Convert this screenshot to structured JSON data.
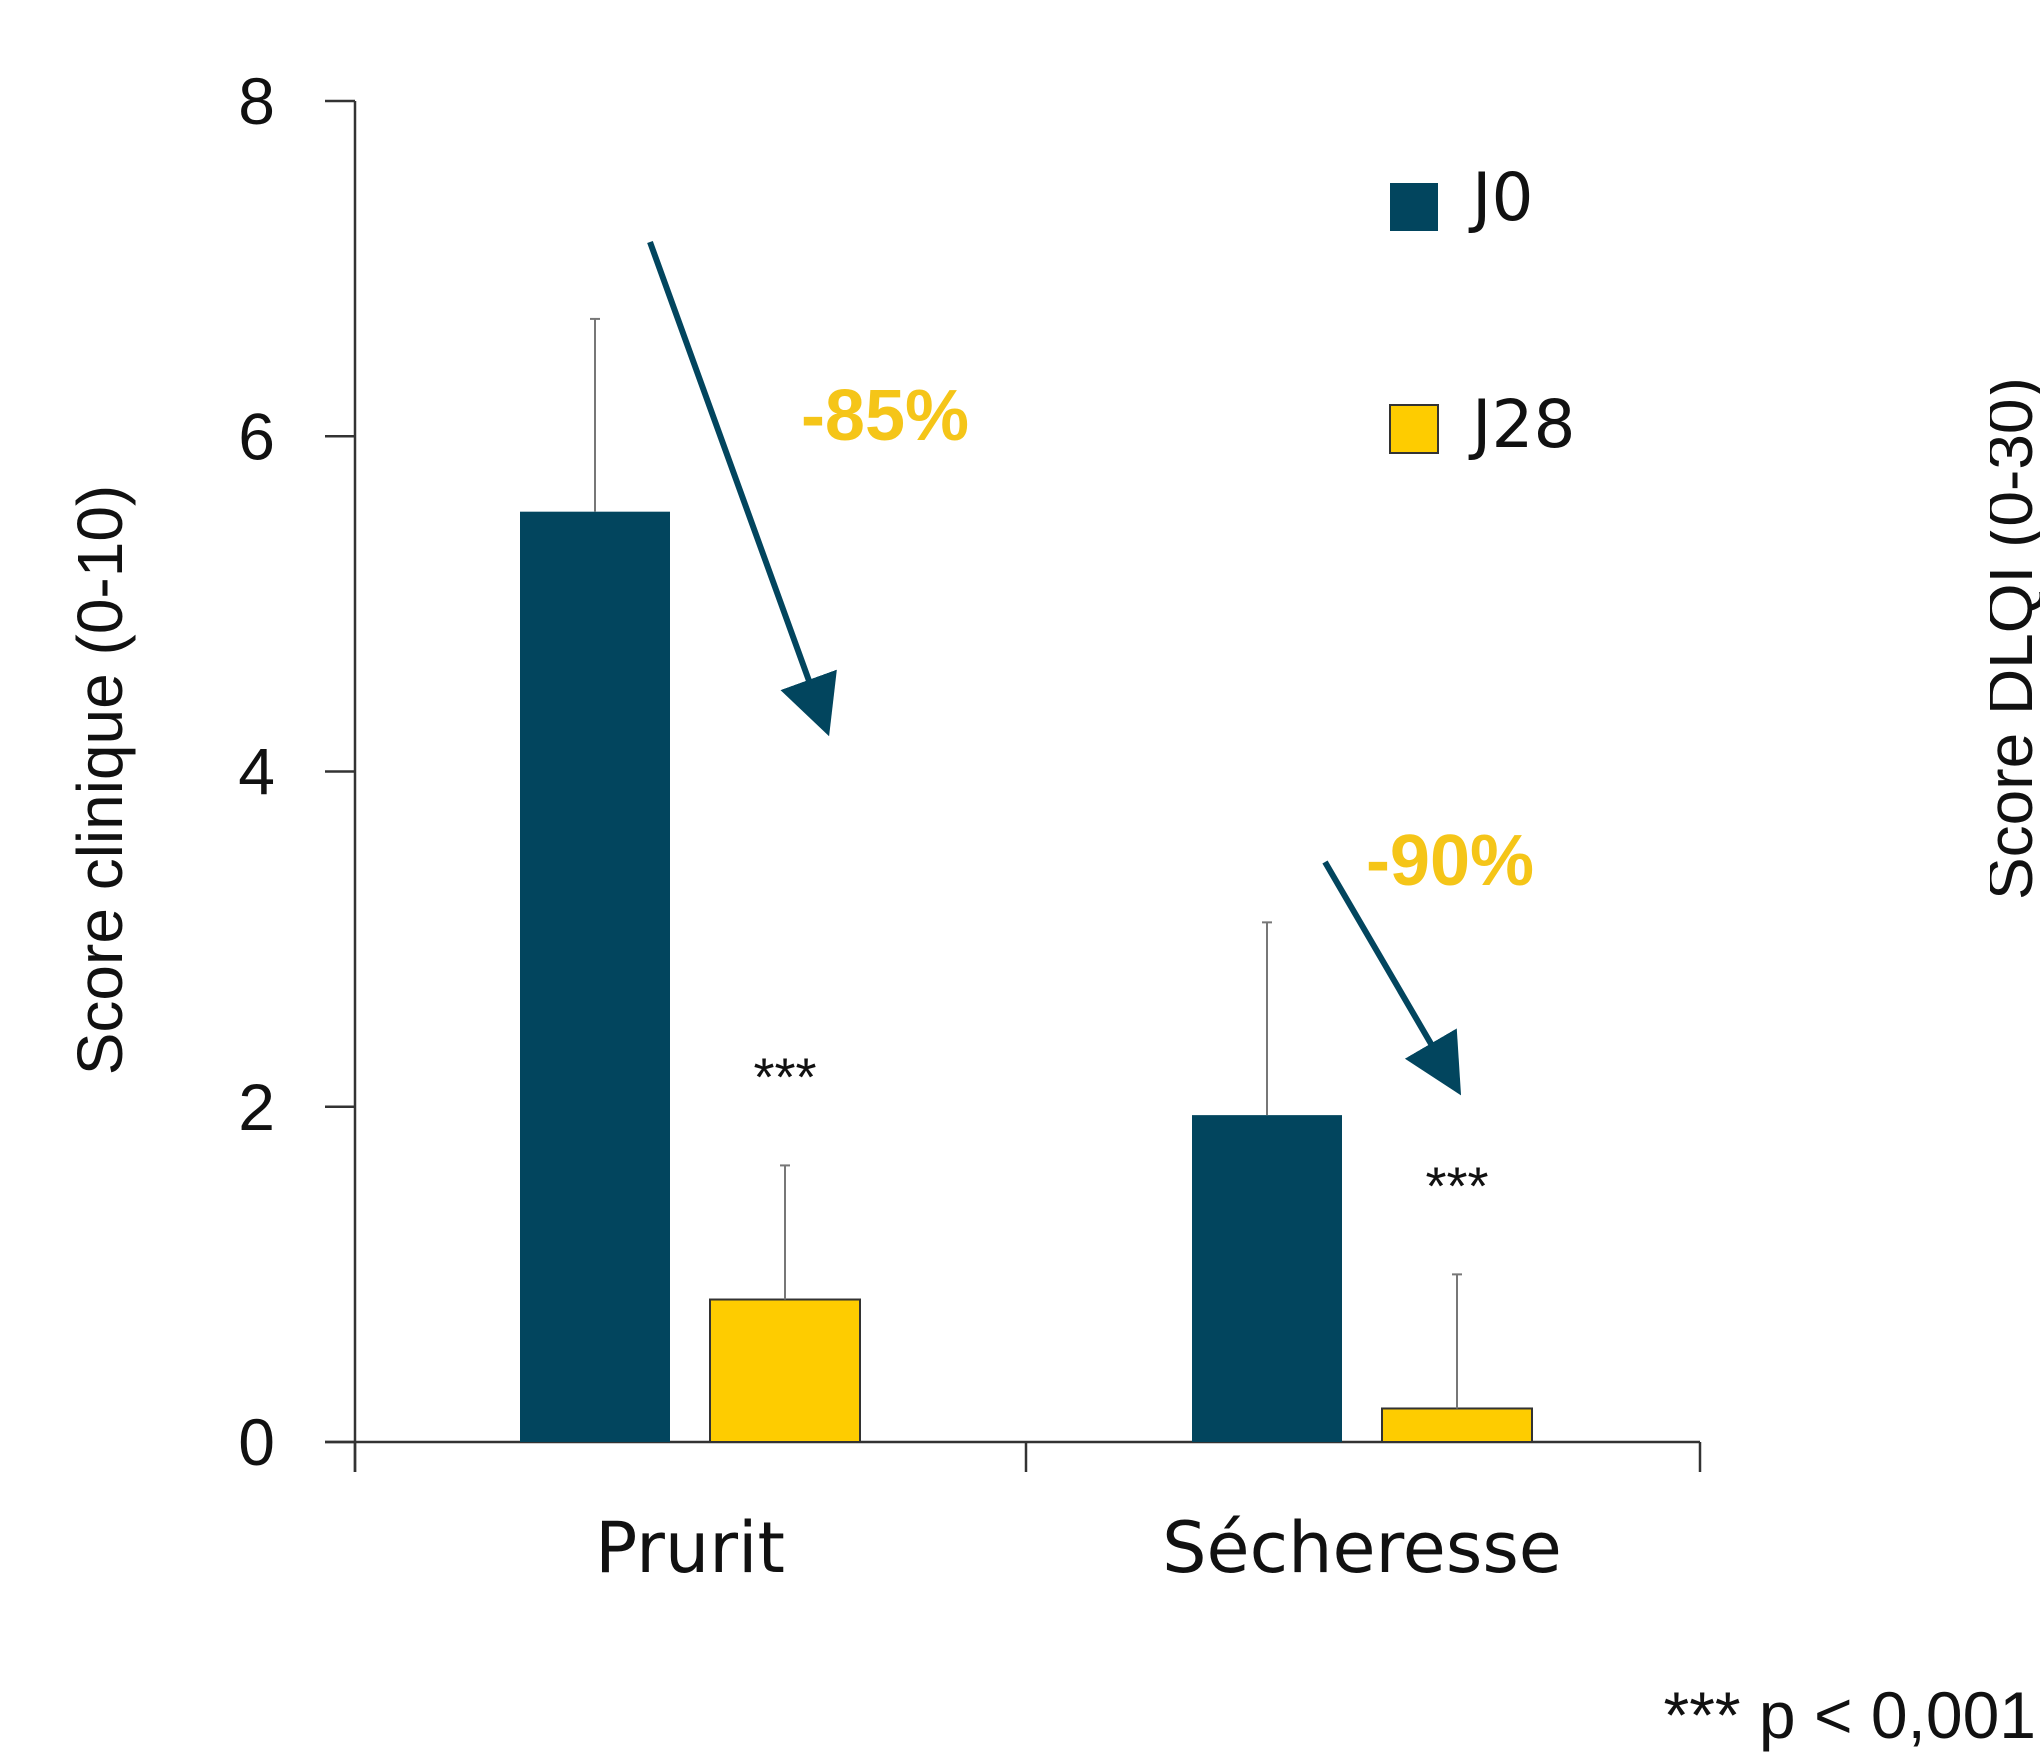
{
  "chart_data": {
    "type": "bar",
    "ylabel": "Score clinique (0-10)",
    "ylim": [
      0,
      8
    ],
    "yticks": [
      "0",
      "2",
      "4",
      "6",
      "8"
    ],
    "categories": [
      "Prurit",
      "Sécheresse"
    ],
    "series": [
      {
        "name": "J0",
        "values": [
          5.55,
          1.95
        ],
        "errors": [
          1.15,
          1.15
        ]
      },
      {
        "name": "J28",
        "values": [
          0.85,
          0.2
        ],
        "errors": [
          0.8,
          0.8
        ]
      }
    ],
    "annotations": [
      {
        "category": "Prurit",
        "text": "-85%"
      },
      {
        "category": "Sécheresse",
        "text": "-90%"
      }
    ],
    "significance": [
      "***",
      "***"
    ],
    "footnote": "*** p < 0,001",
    "right_axis_label_partial": "Score DLQI (0-30)",
    "legend_position": "top-right",
    "grid": false
  },
  "colors": {
    "J0": "#02455e",
    "J28": "#fecc00",
    "annotation": "#f5c518",
    "arrow": "#02455e"
  }
}
